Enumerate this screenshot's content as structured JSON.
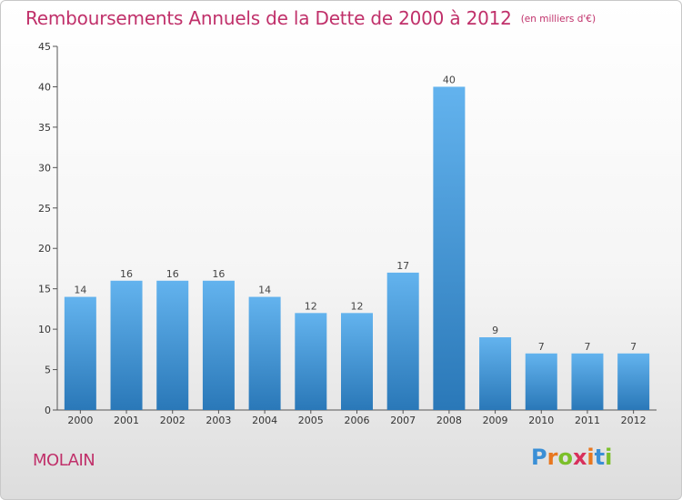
{
  "header": {
    "title": "Remboursements Annuels de la Dette de 2000 à 2012",
    "unit": "(en milliers d'€)"
  },
  "footer": {
    "place": "MOLAIN",
    "brand": "Proxiti",
    "brand_letter_colors": [
      "#3a8fd6",
      "#e8771f",
      "#7bbf2a",
      "#d8305c",
      "#e8771f",
      "#3a8fd6",
      "#7bbf2a"
    ]
  },
  "colors": {
    "title": "#c0306a",
    "bar_top": "#63b3ee",
    "bar_bottom": "#2a78b8",
    "axis": "#555555"
  },
  "chart_data": {
    "type": "bar",
    "title": "Remboursements Annuels de la Dette de 2000 à 2012",
    "subtitle": "(en milliers d'€)",
    "xlabel": "",
    "ylabel": "",
    "categories": [
      "2000",
      "2001",
      "2002",
      "2003",
      "2004",
      "2005",
      "2006",
      "2007",
      "2008",
      "2009",
      "2010",
      "2011",
      "2012"
    ],
    "values": [
      14,
      16,
      16,
      16,
      14,
      12,
      12,
      17,
      40,
      9,
      7,
      7,
      7
    ],
    "ylim": [
      0,
      45
    ],
    "yticks": [
      0,
      5,
      10,
      15,
      20,
      25,
      30,
      35,
      40,
      45
    ],
    "grid": false,
    "legend": "none"
  }
}
